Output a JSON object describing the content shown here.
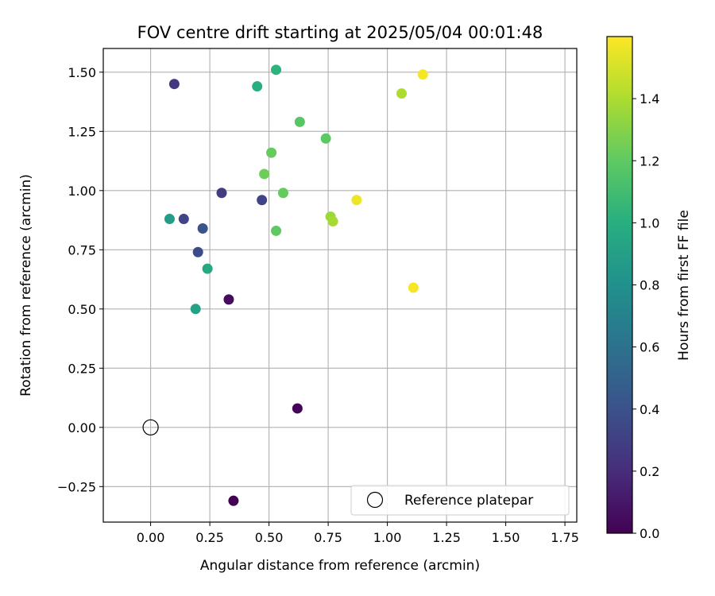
{
  "chart_data": {
    "type": "scatter",
    "title": "FOV centre drift starting at 2025/05/04 00:01:48",
    "xlabel": "Angular distance from reference (arcmin)",
    "ylabel": "Rotation from reference (arcmin)",
    "xlim": [
      -0.2,
      1.8
    ],
    "ylim": [
      -0.4,
      1.6
    ],
    "x_ticks": [
      0.0,
      0.25,
      0.5,
      0.75,
      1.0,
      1.25,
      1.5,
      1.75
    ],
    "x_tick_labels": [
      "0.00",
      "0.25",
      "0.50",
      "0.75",
      "1.00",
      "1.25",
      "1.50",
      "1.75"
    ],
    "y_ticks": [
      -0.25,
      0.0,
      0.25,
      0.5,
      0.75,
      1.0,
      1.25,
      1.5
    ],
    "y_tick_labels": [
      "−0.25",
      "0.00",
      "0.25",
      "0.50",
      "0.75",
      "1.00",
      "1.25",
      "1.50"
    ],
    "grid": true,
    "colormap": "viridis",
    "colorbar": {
      "label": "Hours from first FF file",
      "range": [
        0,
        1.6
      ],
      "ticks": [
        0.0,
        0.2,
        0.4,
        0.6,
        0.8,
        1.0,
        1.2,
        1.4
      ],
      "tick_labels": [
        "0.0",
        "0.2",
        "0.4",
        "0.6",
        "0.8",
        "1.0",
        "1.2",
        "1.4"
      ]
    },
    "reference": {
      "x": 0.0,
      "y": 0.0,
      "label": "Reference platepar"
    },
    "legend": {
      "placement": "lower-right",
      "entries": [
        "Reference platepar"
      ]
    },
    "points": [
      {
        "x": 0.35,
        "y": -0.31,
        "hours": 0.0
      },
      {
        "x": 0.62,
        "y": 0.08,
        "hours": 0.02
      },
      {
        "x": 0.33,
        "y": 0.54,
        "hours": 0.05
      },
      {
        "x": 0.1,
        "y": 1.45,
        "hours": 0.25
      },
      {
        "x": 0.3,
        "y": 0.99,
        "hours": 0.28
      },
      {
        "x": 0.47,
        "y": 0.96,
        "hours": 0.32
      },
      {
        "x": 0.14,
        "y": 0.88,
        "hours": 0.33
      },
      {
        "x": 0.2,
        "y": 0.74,
        "hours": 0.36
      },
      {
        "x": 0.22,
        "y": 0.84,
        "hours": 0.4
      },
      {
        "x": 0.08,
        "y": 0.88,
        "hours": 0.88
      },
      {
        "x": 0.19,
        "y": 0.5,
        "hours": 0.92
      },
      {
        "x": 0.24,
        "y": 0.67,
        "hours": 0.96
      },
      {
        "x": 0.45,
        "y": 1.44,
        "hours": 1.0
      },
      {
        "x": 0.53,
        "y": 1.51,
        "hours": 1.02
      },
      {
        "x": 0.63,
        "y": 1.29,
        "hours": 1.18
      },
      {
        "x": 0.74,
        "y": 1.22,
        "hours": 1.2
      },
      {
        "x": 0.51,
        "y": 1.16,
        "hours": 1.22
      },
      {
        "x": 0.48,
        "y": 1.07,
        "hours": 1.24
      },
      {
        "x": 0.56,
        "y": 0.99,
        "hours": 1.22
      },
      {
        "x": 0.53,
        "y": 0.83,
        "hours": 1.2
      },
      {
        "x": 0.76,
        "y": 0.89,
        "hours": 1.36
      },
      {
        "x": 0.77,
        "y": 0.87,
        "hours": 1.38
      },
      {
        "x": 1.06,
        "y": 1.41,
        "hours": 1.4
      },
      {
        "x": 0.87,
        "y": 0.96,
        "hours": 1.56
      },
      {
        "x": 1.15,
        "y": 1.49,
        "hours": 1.58
      },
      {
        "x": 1.11,
        "y": 0.59,
        "hours": 1.58
      }
    ]
  }
}
